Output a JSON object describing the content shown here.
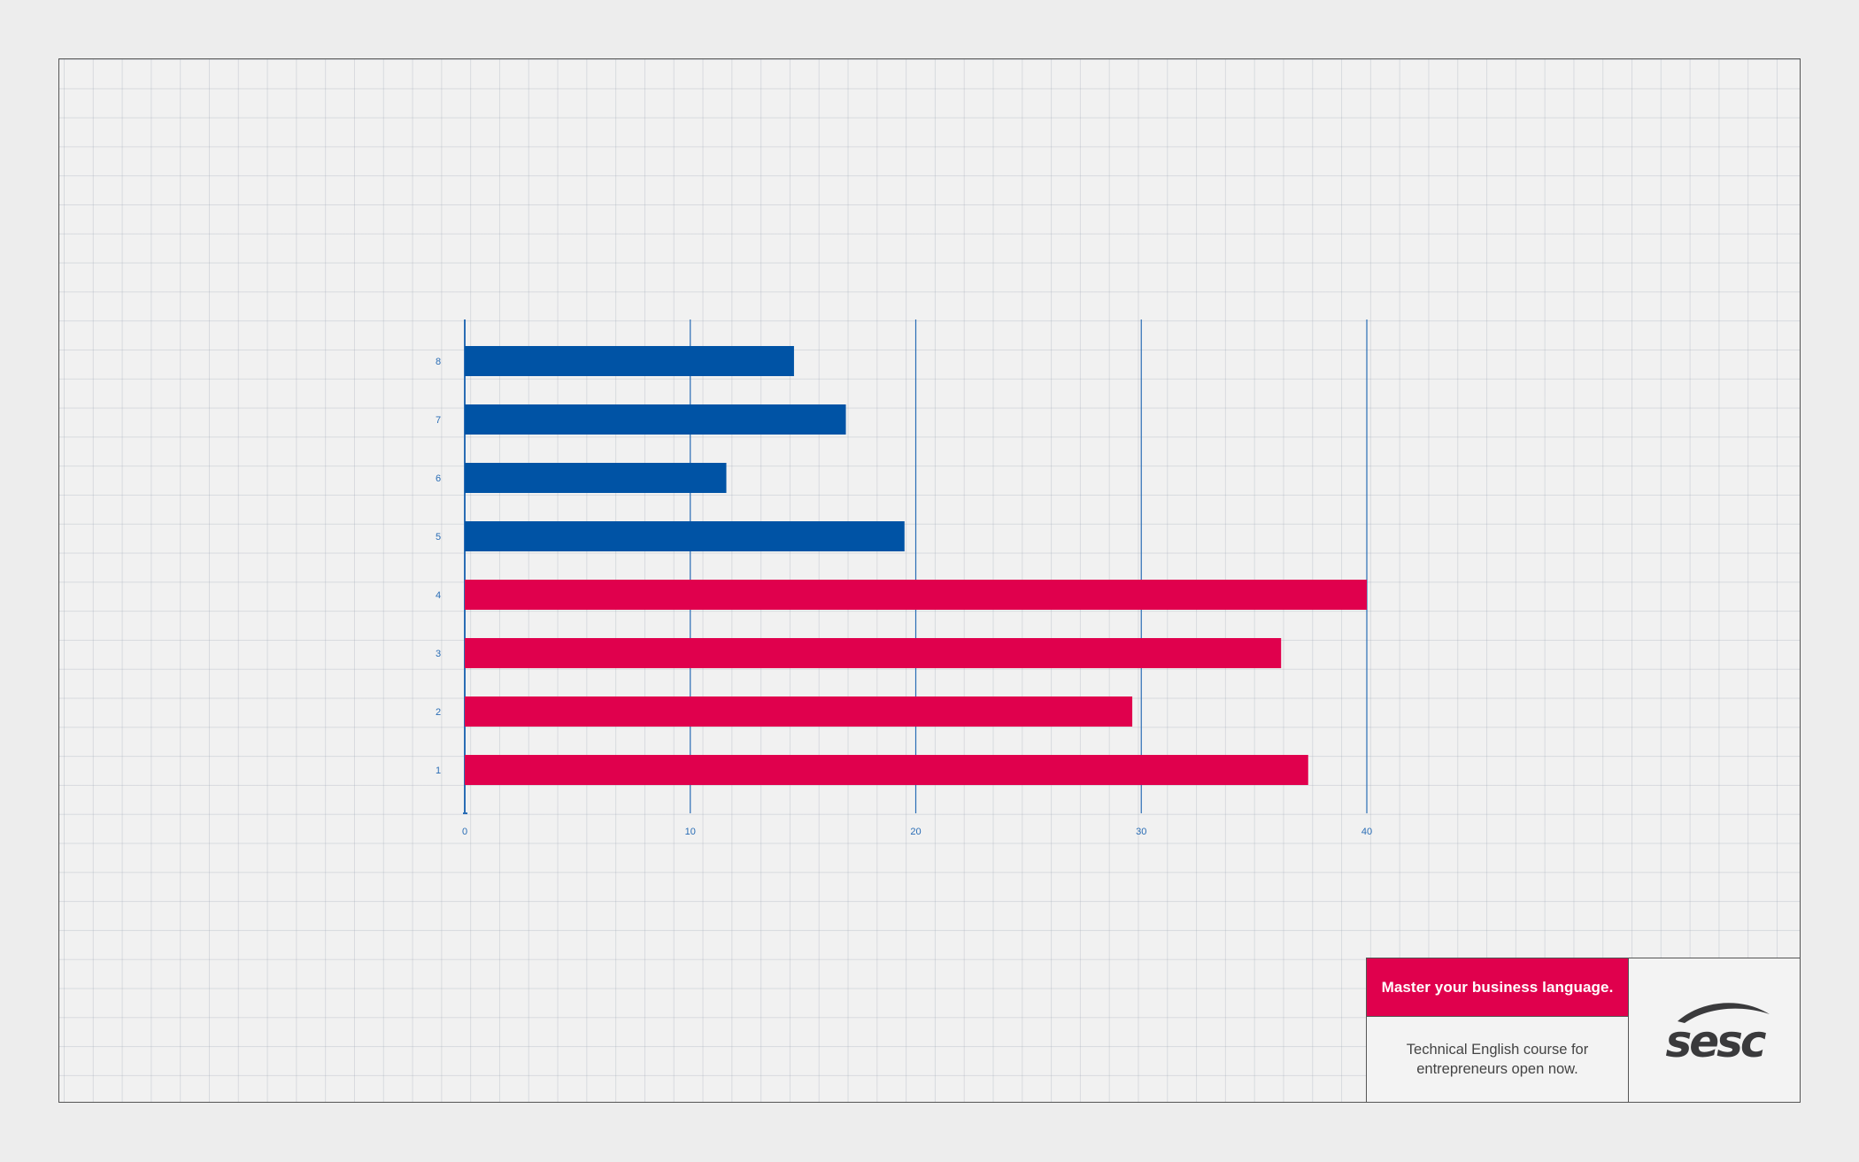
{
  "colors": {
    "blue": "#0053a5",
    "red": "#e0004d",
    "axis": "#2a6db5",
    "logo": "#3a3a3c"
  },
  "chart_data": {
    "type": "bar",
    "orientation": "horizontal",
    "title": "",
    "xlabel": "",
    "ylabel": "",
    "xlim": [
      0,
      40
    ],
    "x_ticks": [
      0,
      10,
      20,
      30,
      40
    ],
    "categories": [
      "1",
      "2",
      "3",
      "4",
      "5",
      "6",
      "7",
      "8"
    ],
    "values": [
      37.4,
      29.6,
      36.2,
      40,
      19.5,
      11.6,
      16.9,
      14.6
    ],
    "bar_colors": [
      "red",
      "red",
      "red",
      "red",
      "blue",
      "blue",
      "blue",
      "blue"
    ],
    "grid": "vertical lines at x ticks",
    "legend": "none"
  },
  "footer": {
    "tagline": "Master your business language.",
    "course_text": "Technical English course for\nentrepreneurs open now.",
    "logo_text": "sesc",
    "logo_icon": "sesc-swoosh-logo"
  }
}
